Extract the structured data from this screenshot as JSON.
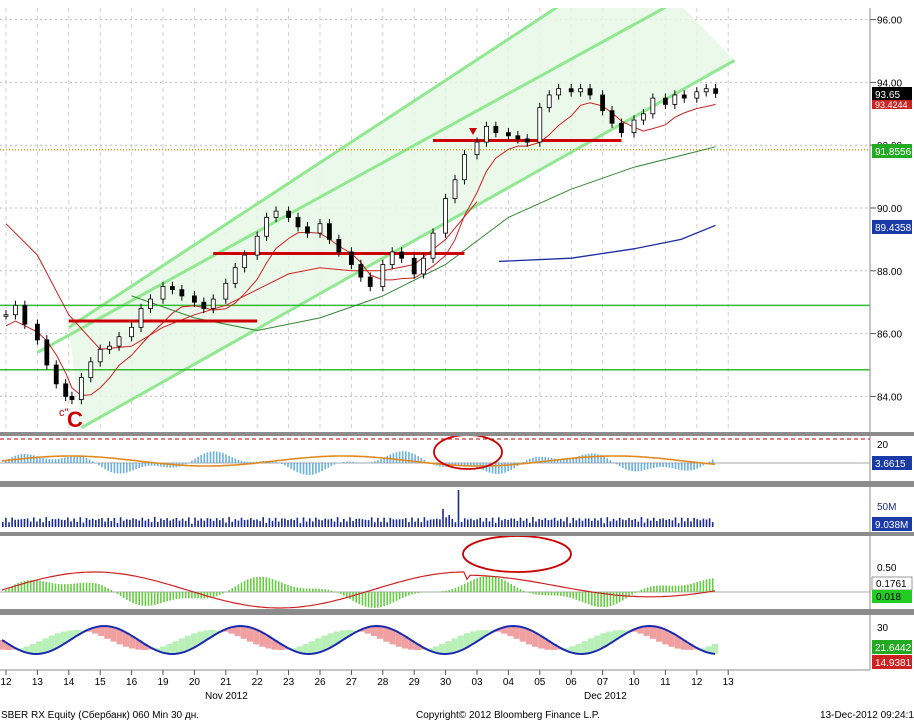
{
  "colors": {
    "background": "#ffffff",
    "channel_line": "#90e890",
    "channel_fill": "#e8f8e8",
    "candle": "#000000",
    "red_level": "#cc0000",
    "ma_red": "#cc2222",
    "ma_green": "#338833",
    "ma_blue": "#1a2aa0",
    "green_hline": "#33bb33",
    "orange_hline": "#d4a017",
    "last_price_box": "#000000",
    "blue_box": "#1a3aa8",
    "green_box": "#22aa22",
    "red_box": "#cc2222",
    "osc_orange": "#e08a1e",
    "histo_blue": "#6ab0e0",
    "volume_bar": "#1a2a90",
    "macd_green": "#66cc44",
    "macd_red_band": "#e07070",
    "fill_red": "#f0a0a0",
    "fill_green": "#b8f0b8",
    "line_blue": "#1a2ab0",
    "separator": "#8c8c8c"
  },
  "chart_data": {
    "type": "candlestick",
    "instrument": "SBER RX Equity (Сбербанк) 060 Min 30 дн.",
    "copyright": "Copyright© 2012 Bloomberg Finance L.P.",
    "timestamp": "13-Dec-2012 09:24:18",
    "x_axis": {
      "day_labels": [
        "12",
        "13",
        "14",
        "15",
        "16",
        "19",
        "20",
        "21",
        "22",
        "23",
        "26",
        "27",
        "28",
        "29",
        "30",
        "03",
        "04",
        "05",
        "06",
        "07",
        "10",
        "11",
        "12",
        "13"
      ],
      "month_labels": [
        "Nov 2012",
        "Dec 2012"
      ]
    },
    "price_axis": {
      "ylim": [
        82.9,
        96.4
      ],
      "ticks": [
        "96.00",
        "94.00",
        "92.00",
        "90.00",
        "88.00",
        "86.00",
        "84.00"
      ]
    },
    "price_series": [
      [
        12.0,
        86.6
      ],
      [
        12.3,
        86.9
      ],
      [
        12.6,
        86.3
      ],
      [
        13.0,
        85.8
      ],
      [
        13.3,
        85.0
      ],
      [
        13.6,
        84.4
      ],
      [
        13.9,
        84.0
      ],
      [
        14.1,
        83.9
      ],
      [
        14.4,
        84.6
      ],
      [
        14.7,
        85.1
      ],
      [
        15.0,
        85.5
      ],
      [
        15.3,
        85.6
      ],
      [
        15.6,
        85.9
      ],
      [
        16.0,
        86.2
      ],
      [
        16.3,
        86.8
      ],
      [
        16.6,
        87.1
      ],
      [
        17.0,
        87.5
      ],
      [
        17.3,
        87.4
      ],
      [
        17.6,
        87.2
      ],
      [
        18.0,
        87.0
      ],
      [
        18.3,
        86.8
      ],
      [
        18.6,
        87.1
      ],
      [
        19.0,
        87.6
      ],
      [
        19.3,
        88.1
      ],
      [
        19.6,
        88.5
      ],
      [
        20.0,
        89.1
      ],
      [
        20.3,
        89.7
      ],
      [
        20.6,
        89.9
      ],
      [
        21.0,
        89.7
      ],
      [
        21.3,
        89.4
      ],
      [
        21.6,
        89.2
      ],
      [
        22.0,
        89.5
      ],
      [
        22.3,
        89.0
      ],
      [
        22.6,
        88.6
      ],
      [
        23.0,
        88.2
      ],
      [
        23.3,
        87.8
      ],
      [
        23.6,
        87.5
      ],
      [
        24.0,
        88.2
      ],
      [
        24.3,
        88.6
      ],
      [
        24.6,
        88.4
      ],
      [
        25.0,
        87.9
      ],
      [
        25.3,
        88.4
      ],
      [
        25.6,
        89.2
      ],
      [
        26.0,
        90.3
      ],
      [
        26.3,
        90.9
      ],
      [
        26.6,
        91.7
      ],
      [
        27.0,
        92.1
      ],
      [
        27.3,
        92.6
      ],
      [
        27.6,
        92.4
      ],
      [
        28.0,
        92.3
      ],
      [
        28.3,
        92.2
      ],
      [
        28.6,
        92.1
      ],
      [
        29.0,
        93.2
      ],
      [
        29.3,
        93.6
      ],
      [
        29.6,
        93.8
      ],
      [
        30.0,
        93.7
      ],
      [
        30.3,
        93.8
      ],
      [
        30.6,
        93.6
      ],
      [
        31.0,
        93.1
      ],
      [
        31.3,
        92.7
      ],
      [
        31.6,
        92.4
      ],
      [
        32.0,
        92.8
      ],
      [
        32.3,
        93.0
      ],
      [
        32.6,
        93.5
      ],
      [
        33.0,
        93.3
      ],
      [
        33.3,
        93.6
      ],
      [
        33.6,
        93.5
      ],
      [
        34.0,
        93.7
      ],
      [
        34.3,
        93.8
      ],
      [
        34.6,
        93.65
      ]
    ],
    "levels": {
      "last_price": "93.65",
      "red_ma_label": "93.4244",
      "horizontal_level": "91.8556",
      "blue_ma_label": "89.4358",
      "green_lines": [
        86.9,
        84.85
      ]
    },
    "panel2": {
      "right_labels": [
        "20",
        "3.6615"
      ]
    },
    "volume_panel": {
      "right_labels": [
        "50M",
        "9.038M"
      ]
    },
    "macd_panel": {
      "right_labels": [
        "0.50",
        "0.1761",
        "0.018"
      ]
    },
    "bottom_panel": {
      "right_labels": [
        "30",
        "21.6442",
        "14.9381"
      ]
    },
    "annotations": {
      "wave_small": "c\"",
      "wave_big": "C"
    }
  }
}
